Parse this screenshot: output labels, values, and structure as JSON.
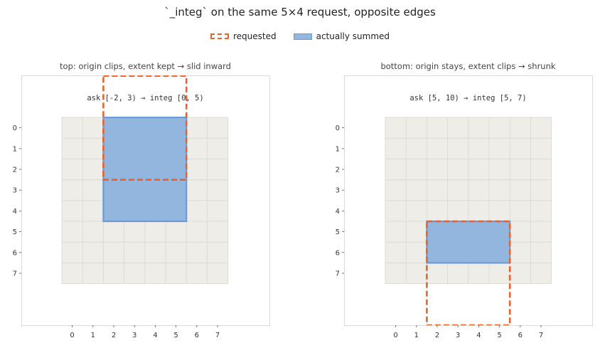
{
  "figure": {
    "title": "`_integ` on the same 5×4 request, opposite edges"
  },
  "legend": {
    "requested": "requested",
    "summed": "actually summed"
  },
  "colors": {
    "requested": "#e8622a",
    "summed_fill": "#93b6df",
    "summed_edge": "#6a9bd8",
    "grid_bg": "#efede8",
    "grid_line": "#dcdad4",
    "frame": "#d9d9d9"
  },
  "chart_data": [
    {
      "type": "heatmap",
      "title": "top: origin clips, extent kept → slid inward",
      "annotation": "ask [-2, 3) → integ [0, 5)",
      "grid": {
        "cols": 8,
        "rows": 8
      },
      "x_ticks": [
        0,
        1,
        2,
        3,
        4,
        5,
        6,
        7
      ],
      "y_ticks": [
        0,
        1,
        2,
        3,
        4,
        5,
        6,
        7
      ],
      "requested": {
        "col_start": 2,
        "col_end": 6,
        "row_start": -2,
        "row_end": 3
      },
      "summed": {
        "col_start": 2,
        "col_end": 6,
        "row_start": 0,
        "row_end": 5
      }
    },
    {
      "type": "heatmap",
      "title": "bottom: origin stays, extent clips → shrunk",
      "annotation": "ask [5, 10) → integ [5, 7)",
      "grid": {
        "cols": 8,
        "rows": 8
      },
      "x_ticks": [
        0,
        1,
        2,
        3,
        4,
        5,
        6,
        7
      ],
      "y_ticks": [
        0,
        1,
        2,
        3,
        4,
        5,
        6,
        7
      ],
      "requested": {
        "col_start": 2,
        "col_end": 6,
        "row_start": 5,
        "row_end": 10
      },
      "summed": {
        "col_start": 2,
        "col_end": 6,
        "row_start": 5,
        "row_end": 7
      }
    }
  ]
}
